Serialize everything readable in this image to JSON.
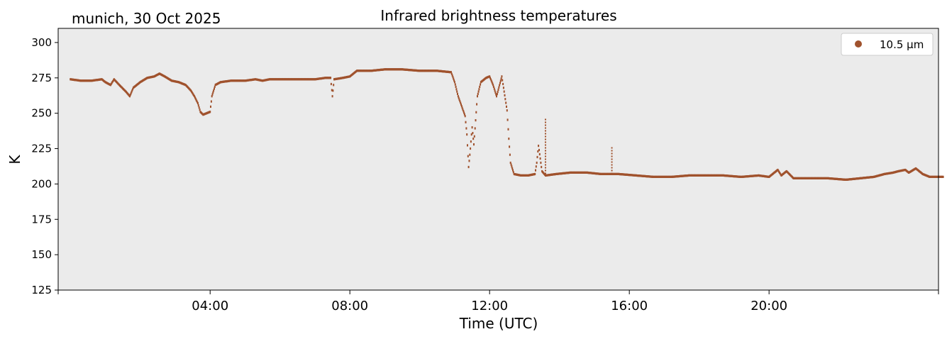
{
  "chart_data": {
    "type": "scatter",
    "title": "Infrared brightness temperatures",
    "location_date": "munich, 30 Oct 2025",
    "xlabel": "Time (UTC)",
    "ylabel": "K",
    "ylim": [
      125,
      310
    ],
    "xlim_hours": [
      0,
      24
    ],
    "y_ticks": [
      "125",
      "150",
      "175",
      "200",
      "225",
      "250",
      "275",
      "300"
    ],
    "x_ticks": [
      {
        "hour": 4,
        "label": "04:00"
      },
      {
        "hour": 8,
        "label": "08:00"
      },
      {
        "hour": 12,
        "label": "12:00"
      },
      {
        "hour": 16,
        "label": "16:00"
      },
      {
        "hour": 20,
        "label": "20:00"
      }
    ],
    "grid": false,
    "legend_position": "top-right",
    "colors": {
      "series": "#a0522d",
      "plot_background": "#ebebeb"
    },
    "series": [
      {
        "name": "10.5 µm",
        "points": [
          [
            0.0,
            274
          ],
          [
            0.3,
            273
          ],
          [
            0.6,
            273
          ],
          [
            0.9,
            274
          ],
          [
            1.0,
            272
          ],
          [
            1.15,
            270
          ],
          [
            1.25,
            274
          ],
          [
            1.4,
            270
          ],
          [
            1.6,
            265
          ],
          [
            1.7,
            262
          ],
          [
            1.8,
            268
          ],
          [
            2.0,
            272
          ],
          [
            2.2,
            275
          ],
          [
            2.4,
            276
          ],
          [
            2.55,
            278
          ],
          [
            2.7,
            276
          ],
          [
            2.9,
            273
          ],
          [
            3.1,
            272
          ],
          [
            3.2,
            271
          ],
          [
            3.3,
            270
          ],
          [
            3.45,
            266
          ],
          [
            3.55,
            262
          ],
          [
            3.65,
            257
          ],
          [
            3.72,
            251
          ],
          [
            3.8,
            249
          ],
          [
            3.9,
            250
          ],
          [
            4.0,
            251
          ],
          [
            4.05,
            262
          ],
          [
            4.15,
            270
          ],
          [
            4.3,
            272
          ],
          [
            4.6,
            273
          ],
          [
            5.0,
            273
          ],
          [
            5.3,
            274
          ],
          [
            5.5,
            273
          ],
          [
            5.7,
            274
          ],
          [
            6.0,
            274
          ],
          [
            6.5,
            274
          ],
          [
            7.0,
            274
          ],
          [
            7.3,
            275
          ],
          [
            7.45,
            275
          ],
          [
            7.5,
            262
          ],
          [
            7.55,
            274
          ],
          [
            7.8,
            275
          ],
          [
            8.0,
            276
          ],
          [
            8.2,
            280
          ],
          [
            8.6,
            280
          ],
          [
            9.0,
            281
          ],
          [
            9.5,
            281
          ],
          [
            10.0,
            280
          ],
          [
            10.5,
            280
          ],
          [
            10.9,
            279
          ],
          [
            11.0,
            272
          ],
          [
            11.1,
            262
          ],
          [
            11.2,
            255
          ],
          [
            11.3,
            248
          ],
          [
            11.35,
            235
          ],
          [
            11.4,
            212
          ],
          [
            11.45,
            225
          ],
          [
            11.5,
            240
          ],
          [
            11.55,
            228
          ],
          [
            11.65,
            262
          ],
          [
            11.75,
            272
          ],
          [
            11.9,
            275
          ],
          [
            12.0,
            276
          ],
          [
            12.1,
            270
          ],
          [
            12.2,
            262
          ],
          [
            12.35,
            276
          ],
          [
            12.5,
            252
          ],
          [
            12.55,
            232
          ],
          [
            12.6,
            215
          ],
          [
            12.7,
            207
          ],
          [
            12.9,
            206
          ],
          [
            13.1,
            206
          ],
          [
            13.3,
            207
          ],
          [
            13.35,
            215
          ],
          [
            13.4,
            227
          ],
          [
            13.5,
            209
          ],
          [
            13.6,
            206
          ],
          [
            13.9,
            207
          ],
          [
            14.3,
            208
          ],
          [
            14.8,
            208
          ],
          [
            15.2,
            207
          ],
          [
            15.7,
            207
          ],
          [
            16.2,
            206
          ],
          [
            16.7,
            205
          ],
          [
            17.2,
            205
          ],
          [
            17.7,
            206
          ],
          [
            18.2,
            206
          ],
          [
            18.7,
            206
          ],
          [
            19.2,
            205
          ],
          [
            19.7,
            206
          ],
          [
            20.0,
            205
          ],
          [
            20.15,
            208
          ],
          [
            20.25,
            210
          ],
          [
            20.35,
            206
          ],
          [
            20.5,
            209
          ],
          [
            20.7,
            204
          ],
          [
            21.2,
            204
          ],
          [
            21.7,
            204
          ],
          [
            22.2,
            203
          ],
          [
            22.6,
            204
          ],
          [
            23.0,
            205
          ],
          [
            23.3,
            207
          ],
          [
            23.55,
            208
          ],
          [
            23.7,
            209
          ],
          [
            23.9,
            210
          ],
          [
            24.0,
            208
          ],
          [
            24.2,
            211
          ],
          [
            24.4,
            207
          ],
          [
            24.6,
            205
          ],
          [
            24.8,
            205
          ],
          [
            25.0,
            205
          ]
        ]
      }
    ],
    "spikes": [
      {
        "x": 13.6,
        "y_low": 207,
        "y_high": 247
      },
      {
        "x": 15.5,
        "y_low": 207,
        "y_high": 226
      }
    ]
  }
}
